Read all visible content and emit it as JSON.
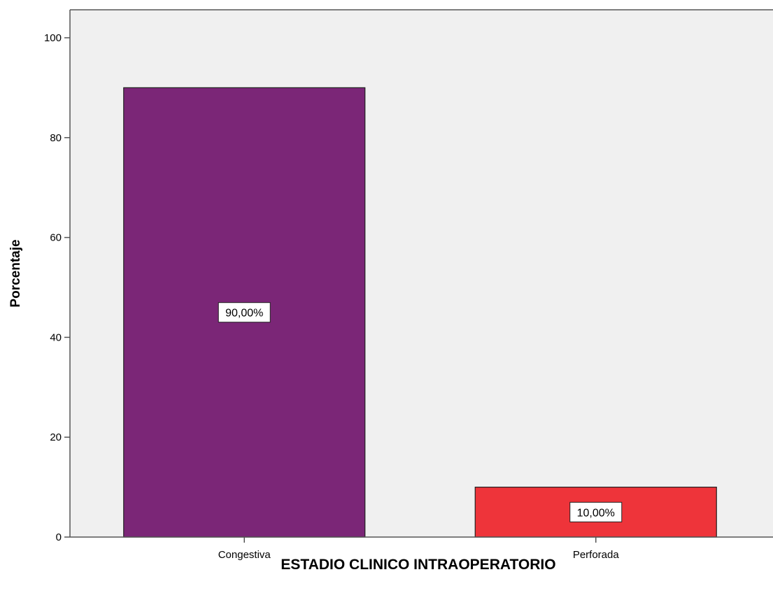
{
  "chart_data": {
    "type": "bar",
    "categories": [
      "Congestiva",
      "Perforada"
    ],
    "values": [
      90,
      10
    ],
    "data_labels": [
      "90,00%",
      "10,00%"
    ],
    "xlabel": "ESTADIO CLINICO INTRAOPERATORIO",
    "ylabel": "Porcentaje",
    "ylim": [
      0,
      100
    ],
    "yticks": [
      0,
      20,
      40,
      60,
      80,
      100
    ],
    "grid": false,
    "legend": "none",
    "plot_background": "#F0F0F0",
    "colors": [
      "#7B2677",
      "#EE343A"
    ]
  }
}
